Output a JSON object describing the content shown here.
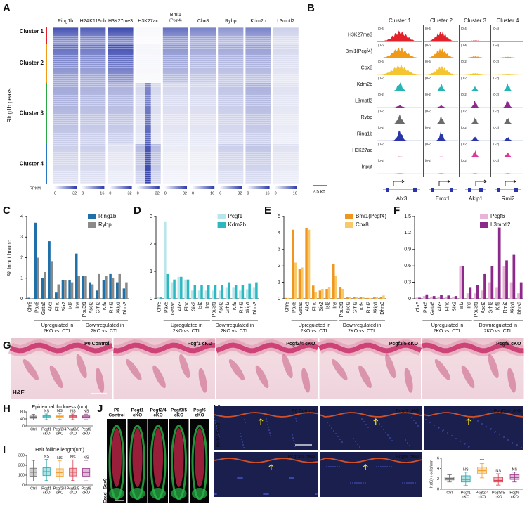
{
  "panel_labels": [
    "A",
    "B",
    "C",
    "D",
    "E",
    "F",
    "G",
    "H",
    "I",
    "J",
    "K"
  ],
  "heatmap": {
    "columns": [
      {
        "name": "Ring1b",
        "scale": [
          0,
          32
        ]
      },
      {
        "name": "H2AK119ub",
        "scale": [
          0,
          16
        ]
      },
      {
        "name": "H3K27me3",
        "scale": [
          0,
          32
        ]
      },
      {
        "name": "H3K27ac",
        "scale": [
          0,
          32
        ]
      },
      {
        "name": "Bmi1",
        "note": "(Pcgf4)",
        "scale": [
          0,
          32
        ]
      },
      {
        "name": "Cbx8",
        "scale": [
          0,
          16
        ]
      },
      {
        "name": "Rybp",
        "scale": [
          0,
          32
        ]
      },
      {
        "name": "Kdm2b",
        "scale": [
          0,
          16
        ]
      },
      {
        "name": "L3mbtl2",
        "scale": [
          0,
          16
        ]
      }
    ],
    "row_label": "Ring1b peaks",
    "scale_label": "RPKM",
    "clusters": [
      {
        "name": "Cluster 1",
        "color": "#e3212b"
      },
      {
        "name": "Cluster 2",
        "color": "#f09a1a"
      },
      {
        "name": "Cluster 3",
        "color": "#2aa845"
      },
      {
        "name": "Cluster 4",
        "color": "#2b78c2"
      }
    ]
  },
  "tracks": {
    "clusters": [
      "Cluster 1",
      "Cluster 2",
      "Cluster 3",
      "Cluster 4"
    ],
    "rows": [
      {
        "name": "H3K27me3",
        "color": "#e3212b",
        "ranges": [
          "[0-4]",
          "[0-4]",
          "[0-4]",
          "[0-4]"
        ]
      },
      {
        "name": "Bmi1(Pcgf4)",
        "color": "#f09a1a",
        "ranges": [
          "[0-6]",
          "[0-6]",
          "[0-4]",
          "[0-4]"
        ]
      },
      {
        "name": "Cbx8",
        "color": "#f5c431",
        "ranges": [
          "[0-6]",
          "[0-6]",
          "[0-2]",
          "[0-2]"
        ]
      },
      {
        "name": "Kdm2b",
        "color": "#25b5b5",
        "ranges": [
          "[0-2]",
          "[0-2]",
          "[0-2]",
          "[0-2]"
        ]
      },
      {
        "name": "L3mbtl2",
        "color": "#8e2a8e",
        "ranges": [
          "[0-2]",
          "[0-2]",
          "[0-2]",
          "[0-2]"
        ]
      },
      {
        "name": "Rybp",
        "color": "#6b6b6b",
        "ranges": [
          "[0-2]",
          "[0-2]",
          "[0-2]",
          "[0-2]"
        ]
      },
      {
        "name": "Ring1b",
        "color": "#2a35a8",
        "ranges": [
          "[0-2]",
          "[0-2]",
          "[0-2]",
          "[0-2]"
        ]
      },
      {
        "name": "H3K27ac",
        "color": "#e0359a",
        "ranges": [
          "[0-2]",
          "[0-2]",
          "[0-2]",
          "[0-2]"
        ]
      },
      {
        "name": "Input",
        "color": "#a8a8a8",
        "ranges": [
          "[0-2]",
          "[0-2]",
          "[0-2]",
          "[0-2]"
        ]
      }
    ],
    "genes": [
      "Alx3",
      "Emx1",
      "Akip1",
      "Rmi2"
    ],
    "scale": "2.5 kb"
  },
  "chart_data": [
    {
      "type": "bar",
      "label": "C",
      "ylabel": "% Input bound",
      "categories": [
        "Chr5",
        "Pax6",
        "Gata6",
        "Alx3",
        "Flnc",
        "Six2",
        "Isl2",
        "Ina",
        "Pou3f1",
        "Ascl2",
        "Grhl2",
        "Klf9",
        "Rmi2",
        "Akip1",
        "Dhrs3"
      ],
      "series": [
        {
          "name": "Ring1b",
          "color": "#1f6fa8",
          "values": [
            0.05,
            3.7,
            1.0,
            2.8,
            0.3,
            0.9,
            0.9,
            2.2,
            1.1,
            0.8,
            0.4,
            0.9,
            1.2,
            0.8,
            0.5
          ]
        },
        {
          "name": "Rybp",
          "color": "#8a8a8a",
          "values": [
            0.02,
            2.0,
            1.3,
            1.8,
            0.7,
            0.9,
            0.8,
            1.1,
            1.1,
            0.7,
            1.2,
            1.1,
            1.0,
            1.2,
            0.8
          ]
        }
      ],
      "ylim": [
        0,
        4
      ],
      "yticks": [
        0,
        1,
        2,
        3,
        4
      ],
      "groups": [
        [
          "Upregulated in",
          "2KO vs. CTL"
        ],
        [
          "Downregulated in",
          "2KO vs. CTL"
        ]
      ]
    },
    {
      "type": "bar",
      "label": "D",
      "categories": [
        "Chr5",
        "Pax6",
        "Gata6",
        "Alx3",
        "Flnc",
        "Six2",
        "Isl2",
        "Ina",
        "Pou3f1",
        "Ascl2",
        "Grhl2",
        "Klf9",
        "Rmi2",
        "Akip1",
        "Dhrs3"
      ],
      "series": [
        {
          "name": "Pcgf1",
          "color": "#b8e6ea",
          "values": [
            0.05,
            2.8,
            0.6,
            0.8,
            0.7,
            0.3,
            0.3,
            0.3,
            0.3,
            0.3,
            0.4,
            0.4,
            0.3,
            0.35,
            0.4
          ]
        },
        {
          "name": "Kdm2b",
          "color": "#2bb8c0",
          "values": [
            0.05,
            0.9,
            0.7,
            0.8,
            0.7,
            0.5,
            0.5,
            0.5,
            0.5,
            0.5,
            0.6,
            0.5,
            0.5,
            0.55,
            0.6
          ]
        }
      ],
      "ylim": [
        0,
        3
      ],
      "yticks": [
        0,
        1,
        2,
        3
      ],
      "groups": [
        [
          "Upregulated in",
          "2KO vs. CTL"
        ],
        [
          "Downregulated in",
          "2KO vs. CTL"
        ]
      ]
    },
    {
      "type": "bar",
      "label": "E",
      "categories": [
        "Chr5",
        "Pax6",
        "Gata6",
        "Alx3",
        "Flnc",
        "Six2",
        "Isl2",
        "Ina",
        "Pou3f1",
        "Ascl2",
        "Grhl2",
        "Klf9",
        "Rmi2",
        "Akip1",
        "Dhrs3"
      ],
      "series": [
        {
          "name": "Bmi1(Pcgf4)",
          "color": "#f0961e",
          "values": [
            0.05,
            4.2,
            1.8,
            4.3,
            0.8,
            0.5,
            0.6,
            2.1,
            0.7,
            0.1,
            0.1,
            0.1,
            0.05,
            0.1,
            0.1
          ]
        },
        {
          "name": "Cbx8",
          "color": "#f7c96a",
          "values": [
            0.05,
            2.2,
            1.9,
            4.2,
            0.4,
            0.6,
            0.7,
            1.4,
            0.6,
            0.1,
            0.1,
            0.1,
            0.05,
            0.1,
            0.2
          ]
        }
      ],
      "ylim": [
        0,
        5
      ],
      "yticks": [
        0,
        1,
        2,
        3,
        4,
        5
      ],
      "groups": [
        [
          "Upregulated in",
          "2KO vs. CTL"
        ],
        [
          "Downregulated in",
          "2KO vs. CTL"
        ]
      ]
    },
    {
      "type": "bar",
      "label": "F",
      "categories": [
        "Chr5",
        "Pax6",
        "Gata6",
        "Alx3",
        "Flnc",
        "Six2",
        "Isl2",
        "Ina",
        "Pou3f1",
        "Ascl2",
        "Grhl2",
        "Klf9",
        "Rmi2",
        "Akip1",
        "Dhrs3"
      ],
      "series": [
        {
          "name": "Pcgf6",
          "color": "#e8b4d8",
          "values": [
            0.02,
            0.05,
            0.04,
            0.04,
            0.04,
            0.03,
            0.6,
            0.1,
            0.1,
            0.15,
            0.3,
            0.2,
            0.6,
            0.3,
            0.1
          ]
        },
        {
          "name": "L3mbtl2",
          "color": "#8b2a8a",
          "values": [
            0.02,
            0.08,
            0.05,
            0.07,
            0.06,
            0.05,
            0.6,
            0.2,
            0.25,
            0.45,
            0.6,
            1.3,
            0.7,
            0.8,
            0.3
          ]
        }
      ],
      "ylim": [
        0,
        1.5
      ],
      "yticks": [
        0,
        0.3,
        0.6,
        0.9,
        1.2,
        1.5
      ],
      "groups": [
        [
          "Upregulated in",
          "2KO vs. CTL"
        ],
        [
          "Downregulated in",
          "2KO vs. CTL"
        ]
      ]
    },
    {
      "type": "box",
      "label": "H",
      "title": "Epidermal thickness (um)",
      "categories": [
        [
          "Ctrl"
        ],
        [
          "Pcgf1",
          "cKO"
        ],
        [
          "Pcgf2/4",
          "cKO"
        ],
        [
          "Pcgf3/5",
          "cKO"
        ],
        [
          "Pcgf6",
          "cKO"
        ]
      ],
      "colors": [
        "#6d6d6d",
        "#2aa8b0",
        "#f0a030",
        "#d84050",
        "#9a3a8a"
      ],
      "boxes": [
        {
          "min": 34,
          "q1": 44,
          "median": 50,
          "q3": 56,
          "max": 66
        },
        {
          "min": 36,
          "q1": 46,
          "median": 52,
          "q3": 58,
          "max": 68
        },
        {
          "min": 38,
          "q1": 48,
          "median": 54,
          "q3": 60,
          "max": 70
        },
        {
          "min": 36,
          "q1": 46,
          "median": 52,
          "q3": 58,
          "max": 68
        },
        {
          "min": 36,
          "q1": 45,
          "median": 51,
          "q3": 57,
          "max": 67
        }
      ],
      "ylim": [
        0,
        80
      ],
      "yticks": [
        0,
        40,
        80
      ],
      "annotations": [
        "NS",
        "NS",
        "NS",
        "NS"
      ]
    },
    {
      "type": "box",
      "label": "I",
      "title": "Hair follicle length(um)",
      "categories": [
        [
          "Ctrl"
        ],
        [
          "Pcgf1",
          "cKO"
        ],
        [
          "Pcgf2/4",
          "cKO"
        ],
        [
          "Pcgf3/5",
          "cKO"
        ],
        [
          "Pcgf6",
          "cKO"
        ]
      ],
      "colors": [
        "#6d6d6d",
        "#2aa8b0",
        "#f0a030",
        "#d84050",
        "#9a3a8a"
      ],
      "boxes": [
        {
          "min": 40,
          "q1": 90,
          "median": 130,
          "q3": 170,
          "max": 250
        },
        {
          "min": 45,
          "q1": 95,
          "median": 135,
          "q3": 175,
          "max": 260
        },
        {
          "min": 40,
          "q1": 88,
          "median": 125,
          "q3": 165,
          "max": 245
        },
        {
          "min": 45,
          "q1": 92,
          "median": 130,
          "q3": 170,
          "max": 255
        },
        {
          "min": 42,
          "q1": 90,
          "median": 128,
          "q3": 168,
          "max": 250
        }
      ],
      "ylim": [
        0,
        300
      ],
      "yticks": [
        0,
        100,
        200,
        300
      ],
      "annotations": [
        "NS",
        "NS",
        "NS",
        "NS"
      ]
    },
    {
      "type": "box",
      "label": "K",
      "ylabel": "Krt8(+) cells/mm",
      "categories": [
        [
          "Ctrl"
        ],
        [
          "Pcgf1",
          "cKO"
        ],
        [
          "Pcgf2/4",
          "cKO"
        ],
        [
          "Pcgf3/5",
          "cKO"
        ],
        [
          "Pcgf6",
          "cKO"
        ]
      ],
      "colors": [
        "#6d6d6d",
        "#2aa8b0",
        "#f0a030",
        "#d84050",
        "#9a3a8a"
      ],
      "boxes": [
        {
          "min": 1.4,
          "q1": 1.8,
          "median": 2.1,
          "q3": 2.4,
          "max": 2.8
        },
        {
          "min": 0.7,
          "q1": 1.4,
          "median": 1.9,
          "q3": 2.6,
          "max": 3.3
        },
        {
          "min": 2.2,
          "q1": 3.0,
          "median": 3.6,
          "q3": 4.3,
          "max": 5.0
        },
        {
          "min": 0.8,
          "q1": 1.4,
          "median": 1.7,
          "q3": 2.3,
          "max": 3.0
        },
        {
          "min": 1.4,
          "q1": 1.9,
          "median": 2.3,
          "q3": 2.8,
          "max": 3.3
        }
      ],
      "ylim": [
        0,
        6
      ],
      "yticks": [
        0,
        2,
        4,
        6
      ],
      "annotations": [
        "NS",
        "***",
        "NS",
        "NS"
      ]
    }
  ],
  "images": {
    "G": {
      "labels": [
        "P0 Control",
        "Pcgf1 cKO",
        "Pcgf2/4 cKO",
        "Pcgf3/5 cKO",
        "Pcgf6 cKO"
      ],
      "stain": "H&E"
    },
    "J": {
      "labels": [
        [
          "P0",
          "Control"
        ],
        [
          "Pcgf1",
          "cKO"
        ],
        [
          "Pcgf2/4",
          "cKO"
        ],
        [
          "Pcgf3/5",
          "cKO"
        ],
        [
          "Pcgf6",
          "cKO"
        ]
      ],
      "stains": [
        {
          "text": "Sox9",
          "color": "#ff3040"
        },
        {
          "text": "Ecad",
          "color": "#30d050"
        }
      ]
    },
    "K": {
      "labels": [
        "P0 Control",
        "Pcgf1 cKO",
        "Pcgf2/4 cKO",
        "Pcgf3/5 cKO",
        "Pcgf6 cKO"
      ],
      "stains": [
        {
          "text": "Krt8/",
          "color": "#ff3040"
        },
        {
          "text": "Sox2",
          "color": "#30d050"
        }
      ]
    }
  }
}
